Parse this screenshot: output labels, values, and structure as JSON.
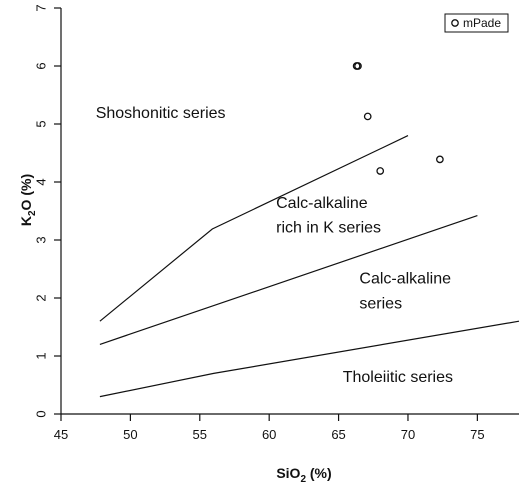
{
  "chart_data": {
    "type": "scatter",
    "xlabel": "SiO2 (%)",
    "ylabel": "K2O (%)",
    "xlabel_main": "SiO",
    "xlabel_sub": "2",
    "xlabel_tail": " (%)",
    "ylabel_main_a": "K",
    "ylabel_sub": "2",
    "ylabel_main_b": "O (%)",
    "xlim": [
      45,
      78
    ],
    "ylim": [
      0,
      7
    ],
    "x_ticks": [
      45,
      50,
      55,
      60,
      65,
      70,
      75
    ],
    "y_ticks": [
      0,
      1,
      2,
      3,
      4,
      5,
      6,
      7
    ],
    "grid": false,
    "legend_position": "top-right",
    "series": [
      {
        "name": "mPade",
        "marker": "open-circle",
        "points": [
          {
            "x": 66.3,
            "y": 6.0
          },
          {
            "x": 66.4,
            "y": 6.0
          },
          {
            "x": 67.1,
            "y": 5.13
          },
          {
            "x": 68.0,
            "y": 4.19
          },
          {
            "x": 72.3,
            "y": 4.39
          }
        ]
      }
    ],
    "boundary_lines": [
      {
        "points": [
          [
            47.8,
            1.6
          ],
          [
            55.9,
            3.19
          ],
          [
            70.0,
            4.8
          ]
        ]
      },
      {
        "points": [
          [
            47.8,
            1.2
          ],
          [
            75.0,
            3.42
          ]
        ]
      },
      {
        "points": [
          [
            47.8,
            0.3
          ],
          [
            56.0,
            0.7
          ],
          [
            78.0,
            1.6
          ]
        ]
      }
    ],
    "region_labels": [
      {
        "text": "Shoshonitic series",
        "x": 47.5,
        "y": 5.1
      },
      {
        "text": "Calc-alkaline",
        "x": 60.5,
        "y": 3.55
      },
      {
        "text": "rich in K series",
        "x": 60.5,
        "y": 3.13
      },
      {
        "text": "Calc-alkaline",
        "x": 66.5,
        "y": 2.25
      },
      {
        "text": "series",
        "x": 66.5,
        "y": 1.82
      },
      {
        "text": "Tholeiitic series",
        "x": 65.3,
        "y": 0.55
      }
    ]
  },
  "colors": {
    "axis": "#111111",
    "marker": "#111111",
    "line": "#111111",
    "background": "#ffffff"
  }
}
